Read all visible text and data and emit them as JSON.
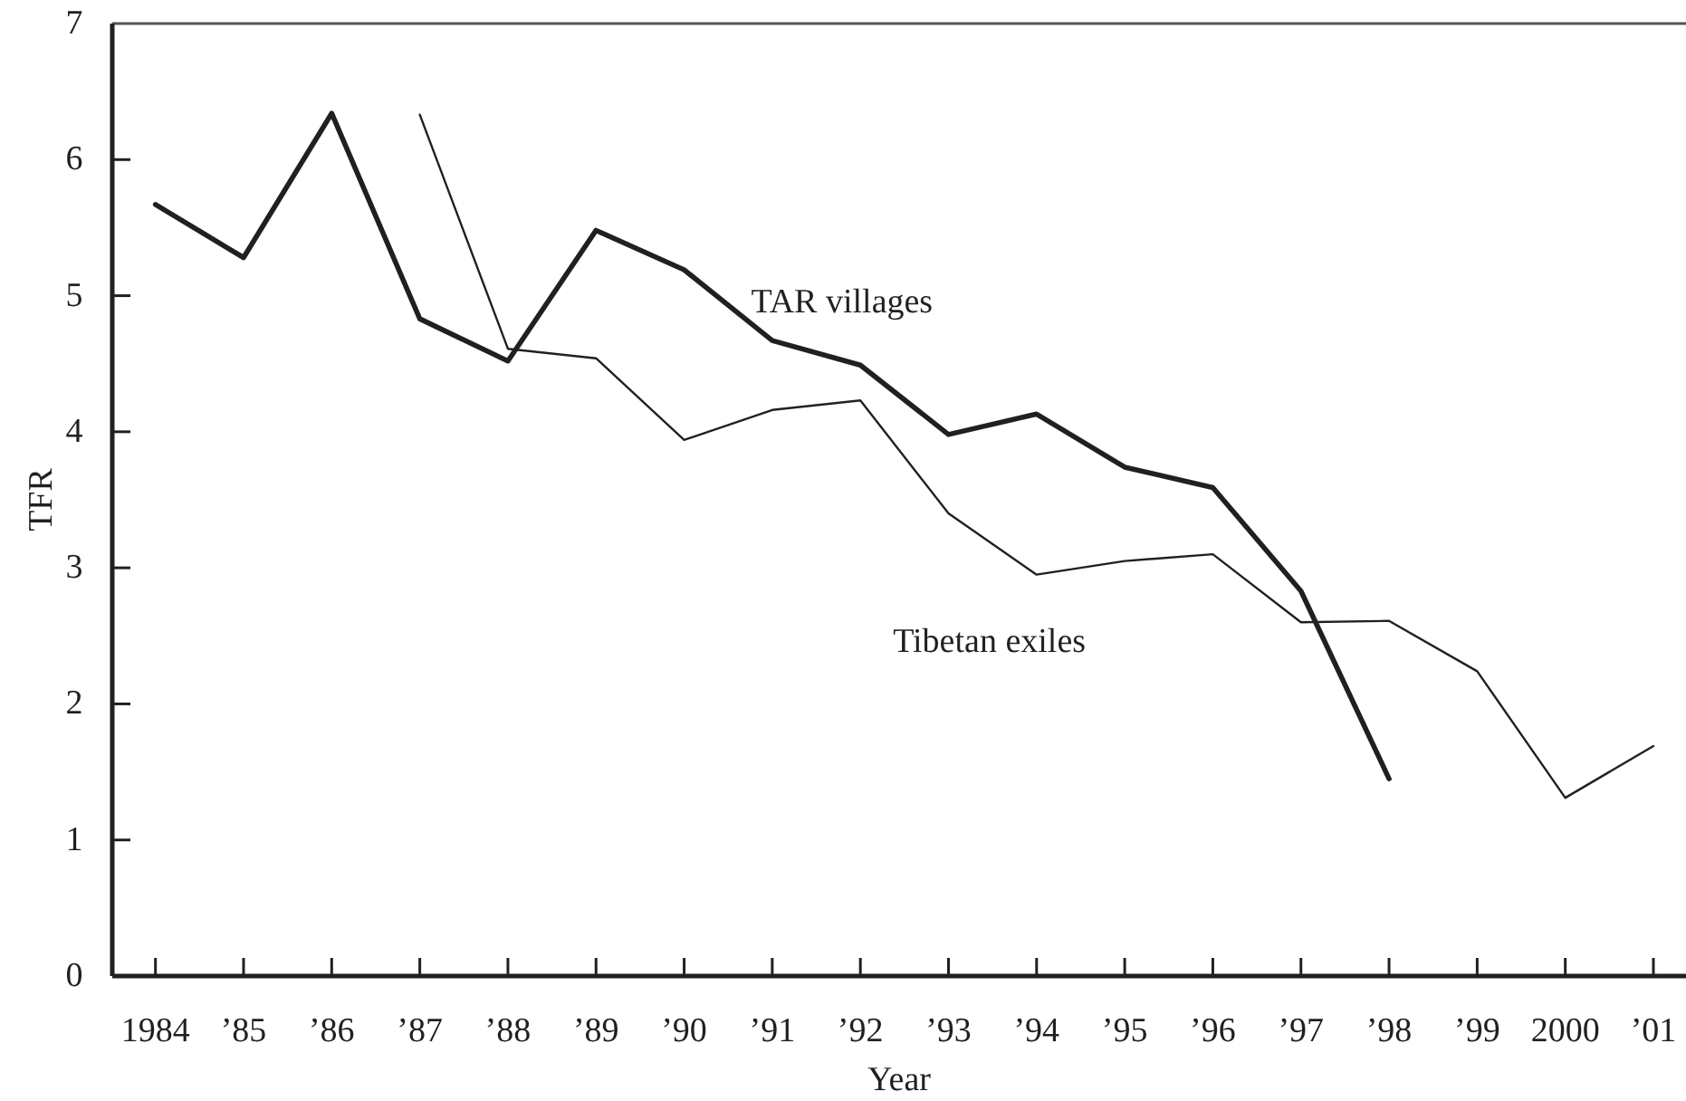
{
  "chart_data": {
    "type": "line",
    "xlabel": "Year",
    "ylabel": "TFR",
    "categories": [
      "1984",
      "’85",
      "’86",
      "’87",
      "’88",
      "’89",
      "’90",
      "’91",
      "’92",
      "’93",
      "’94",
      "’95",
      "’96",
      "’97",
      "’98",
      "’99",
      "2000",
      "’01"
    ],
    "series": [
      {
        "name": "TAR villages",
        "color": "#231f20",
        "values": [
          5.67,
          5.28,
          6.34,
          4.83,
          4.52,
          5.48,
          5.19,
          4.67,
          4.49,
          3.98,
          4.13,
          3.74,
          3.59,
          2.83,
          1.45,
          null,
          null,
          null
        ]
      },
      {
        "name": "Tibetan exiles",
        "color": "#231f20",
        "values": [
          null,
          null,
          null,
          6.33,
          4.61,
          4.54,
          3.94,
          4.16,
          4.23,
          3.4,
          2.95,
          3.05,
          3.1,
          2.6,
          2.61,
          2.24,
          1.31,
          1.69
        ]
      }
    ],
    "ylim": [
      0,
      7
    ],
    "yticks": [
      0,
      1,
      2,
      3,
      4,
      5,
      6,
      7
    ],
    "line_style": "solid"
  }
}
